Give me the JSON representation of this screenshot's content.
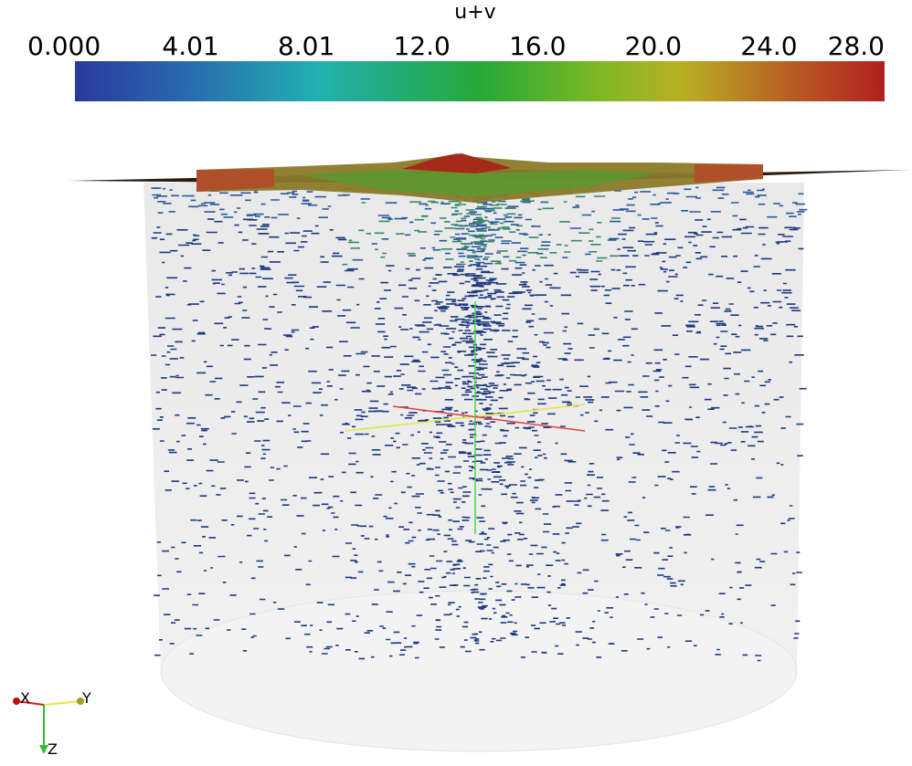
{
  "colorbar": {
    "title": "u+v",
    "ticks": [
      "0.000",
      "4.01",
      "8.01",
      "12.0",
      "16.0",
      "20.0",
      "24.0",
      "28.0"
    ]
  },
  "orientation_axes": {
    "x": "X",
    "y": "Y",
    "z": "Z"
  }
}
